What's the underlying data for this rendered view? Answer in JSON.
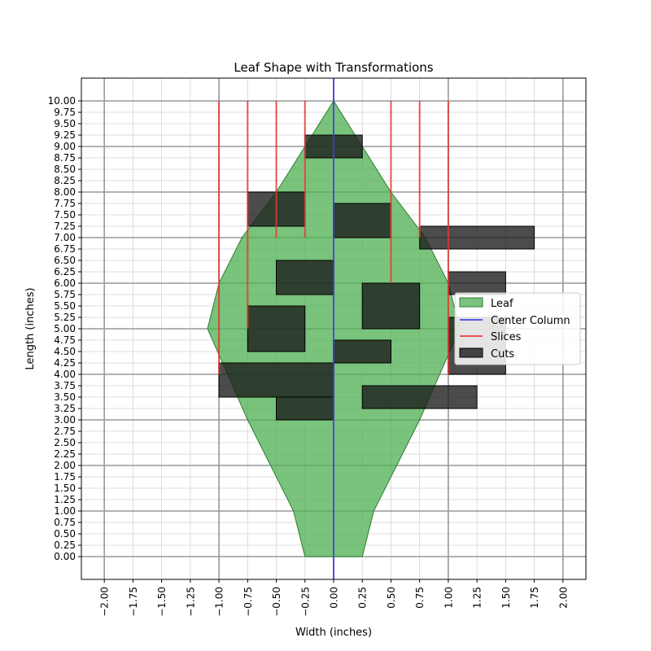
{
  "chart_data": {
    "type": "area",
    "title": "Leaf Shape with Transformations",
    "xlabel": "Width (inches)",
    "ylabel": "Length (inches)",
    "xlim": [
      -2.2,
      2.2
    ],
    "ylim": [
      -0.5,
      10.5
    ],
    "x_ticks": [
      "−2.00",
      "−1.75",
      "−1.50",
      "−1.25",
      "−1.00",
      "−0.75",
      "−0.50",
      "−0.25",
      "0.00",
      "0.25",
      "0.50",
      "0.75",
      "1.00",
      "1.25",
      "1.50",
      "1.75",
      "2.00"
    ],
    "y_ticks": [
      "0.00",
      "0.25",
      "0.50",
      "0.75",
      "1.00",
      "1.25",
      "1.50",
      "1.75",
      "2.00",
      "2.25",
      "2.50",
      "2.75",
      "3.00",
      "3.25",
      "3.50",
      "3.75",
      "4.00",
      "4.25",
      "4.50",
      "4.75",
      "5.00",
      "5.25",
      "5.50",
      "5.75",
      "6.00",
      "6.25",
      "6.50",
      "6.75",
      "7.00",
      "7.25",
      "7.50",
      "7.75",
      "8.00",
      "8.25",
      "8.50",
      "8.75",
      "9.00",
      "9.25",
      "9.50",
      "9.75",
      "10.00"
    ],
    "grid": true,
    "legend_position": "center-right",
    "legend": [
      "Leaf",
      "Center Column",
      "Slices",
      "Cuts"
    ],
    "colors": {
      "leaf_fill": "#4caf50",
      "leaf_edge": "#2e7d32",
      "center_column": "#3f3fdd",
      "slices": "#e53935",
      "cuts": "#1a1a1a",
      "major_grid": "#999999",
      "minor_grid": "#d3d3d3"
    },
    "leaf_outline": [
      [
        -0.25,
        0
      ],
      [
        -0.35,
        1
      ],
      [
        -0.75,
        3
      ],
      [
        -1.1,
        5
      ],
      [
        -1.0,
        6
      ],
      [
        -0.8,
        7
      ],
      [
        -0.5,
        8
      ],
      [
        -0.25,
        9
      ],
      [
        0,
        10
      ],
      [
        0.25,
        9
      ],
      [
        0.5,
        8
      ],
      [
        0.8,
        7
      ],
      [
        1.0,
        6
      ],
      [
        1.1,
        5
      ],
      [
        0.75,
        3
      ],
      [
        0.35,
        1
      ],
      [
        0.25,
        0
      ]
    ],
    "center_column": {
      "x": 0,
      "y": [
        0,
        10
      ]
    },
    "slices": [
      {
        "x": -1.0,
        "y": [
          4,
          10
        ]
      },
      {
        "x": -0.75,
        "y": [
          5,
          10
        ]
      },
      {
        "x": -0.5,
        "y": [
          7,
          10
        ]
      },
      {
        "x": -0.25,
        "y": [
          7,
          10
        ]
      },
      {
        "x": 0.5,
        "y": [
          6,
          10
        ]
      },
      {
        "x": 0.75,
        "y": [
          7,
          10
        ]
      },
      {
        "x": 1.0,
        "y": [
          4,
          10
        ]
      }
    ],
    "cuts": [
      {
        "x": -0.25,
        "y": 8.75,
        "w": 0.5,
        "h": 0.5
      },
      {
        "x": -0.75,
        "y": 7.25,
        "w": 0.5,
        "h": 0.75
      },
      {
        "x": 0,
        "y": 7.0,
        "w": 0.5,
        "h": 0.75
      },
      {
        "x": 0.75,
        "y": 6.75,
        "w": 1.0,
        "h": 0.5
      },
      {
        "x": -0.5,
        "y": 5.75,
        "w": 0.5,
        "h": 0.75
      },
      {
        "x": 1.0,
        "y": 5.75,
        "w": 0.5,
        "h": 0.5
      },
      {
        "x": 0.25,
        "y": 5.0,
        "w": 0.5,
        "h": 1.0
      },
      {
        "x": -0.75,
        "y": 4.5,
        "w": 0.5,
        "h": 1.0
      },
      {
        "x": 1.0,
        "y": 4.0,
        "w": 0.5,
        "h": 1.25
      },
      {
        "x": 0,
        "y": 4.25,
        "w": 0.5,
        "h": 0.5
      },
      {
        "x": -1.0,
        "y": 3.5,
        "w": 1.0,
        "h": 0.75
      },
      {
        "x": 0.25,
        "y": 3.25,
        "w": 1.0,
        "h": 0.5
      },
      {
        "x": -0.5,
        "y": 3.0,
        "w": 0.5,
        "h": 0.5
      }
    ]
  }
}
